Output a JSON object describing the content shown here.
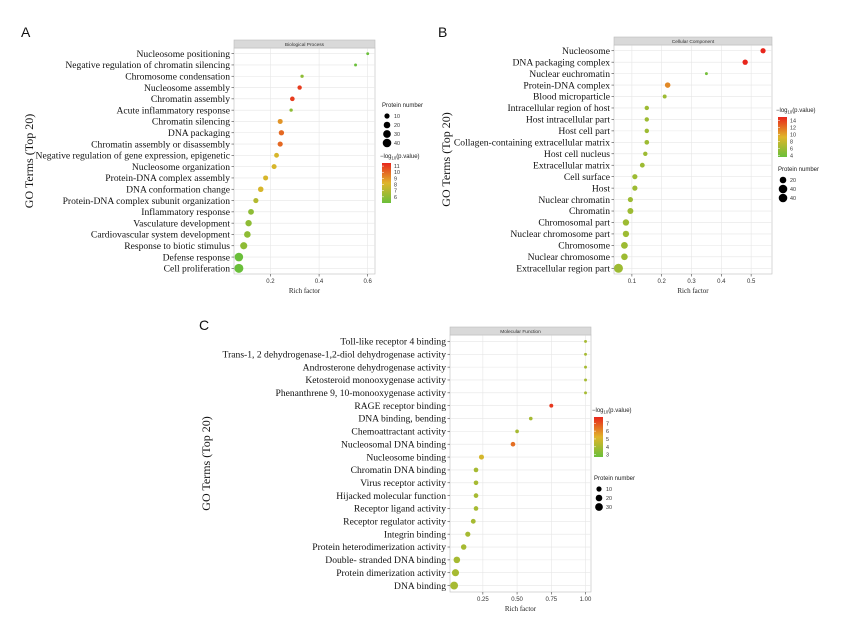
{
  "chart_data": [
    {
      "type": "scatter",
      "panel_letter": "A",
      "title": "Biological Process",
      "xlabel": "Rich factor",
      "ylabel": "GO Terms (Top 20)",
      "x_ticks": [
        "0.2",
        "0.4",
        "0.6"
      ],
      "xlim": [
        0.05,
        0.63
      ],
      "grid": true,
      "terms": [
        "Nucleosome positioning",
        "Negative regulation of chromatin silencing",
        "Chromosome condensation",
        "Nucleosome assembly",
        "Chromatin assembly",
        "Acute inflammatory response",
        "Chromatin silencing",
        "DNA packaging",
        "Chromatin assembly or disassembly",
        "Negative regulation of gene expression, epigenetic",
        "Nucleosome organization",
        "Protein-DNA complex assembly",
        "DNA conformation change",
        "Protein-DNA complex subunit organization",
        "Inflammatory response",
        "Vasculature development",
        "Cardiovascular system development",
        "Response to biotic stimulus",
        "Defense response",
        "Cell proliferation"
      ],
      "rich_factor": [
        0.6,
        0.55,
        0.33,
        0.32,
        0.29,
        0.285,
        0.24,
        0.245,
        0.24,
        0.225,
        0.215,
        0.18,
        0.16,
        0.14,
        0.12,
        0.11,
        0.105,
        0.09,
        0.07,
        0.07
      ],
      "protein_number": [
        1,
        1,
        2,
        6,
        7,
        2,
        9,
        11,
        10,
        8,
        9,
        9,
        12,
        10,
        14,
        18,
        20,
        25,
        40,
        45
      ],
      "neg_log10_p": [
        5,
        5,
        6,
        11,
        11,
        6,
        9,
        10,
        10,
        8,
        8,
        8,
        8,
        7,
        6,
        6,
        6,
        6,
        5,
        5
      ],
      "size_legend": {
        "title": "Protein number",
        "values": [
          "10",
          "20",
          "30",
          "40"
        ]
      },
      "color_legend": {
        "title_main": "−log",
        "title_sub": "10",
        "title_end": "(p.value)",
        "ticks": [
          "11",
          "10",
          "9",
          "8",
          "7",
          "6"
        ],
        "range": [
          5,
          11.5
        ]
      }
    },
    {
      "type": "scatter",
      "panel_letter": "B",
      "title": "Cellular Component",
      "xlabel": "Rich factor",
      "ylabel": "GO Terms (Top 20)",
      "x_ticks": [
        "0.1",
        "0.2",
        "0.3",
        "0.4",
        "0.5"
      ],
      "xlim": [
        0.04,
        0.57
      ],
      "grid": true,
      "terms": [
        "Nucleosome",
        "DNA packaging complex",
        "Nuclear euchromatin",
        "Protein-DNA complex",
        "Blood microparticle",
        "Intracellular region of host",
        "Host intracellular part",
        "Host cell part",
        "Collagen-containing extracellular matrix",
        "Host cell nucleus",
        "Extracellular matrix",
        "Cell surface",
        "Host",
        "Nuclear chromatin",
        "Chromatin",
        "Chromosomal part",
        "Nuclear chromosome part",
        "Chromosome",
        "Nuclear chromosome",
        "Extracellular region part"
      ],
      "rich_factor": [
        0.54,
        0.48,
        0.35,
        0.22,
        0.21,
        0.15,
        0.15,
        0.15,
        0.15,
        0.145,
        0.135,
        0.11,
        0.11,
        0.095,
        0.095,
        0.08,
        0.08,
        0.075,
        0.075,
        0.055
      ],
      "protein_number": [
        10,
        11,
        1,
        12,
        4,
        6,
        6,
        6,
        7,
        6,
        8,
        10,
        10,
        10,
        15,
        18,
        18,
        22,
        20,
        45
      ],
      "neg_log10_p": [
        15,
        15,
        4,
        11,
        6,
        6,
        6,
        6,
        6,
        6,
        6,
        6,
        6,
        6,
        6,
        6,
        6,
        6,
        6,
        6
      ],
      "size_legend": {
        "title": "Protein number",
        "values": [
          "20",
          "40",
          "40"
        ]
      },
      "color_legend": {
        "title_main": "−log",
        "title_sub": "10",
        "title_end": "(p.value)",
        "ticks": [
          "14",
          "12",
          "10",
          "8",
          "6",
          "4"
        ],
        "range": [
          3.5,
          15
        ]
      }
    },
    {
      "type": "scatter",
      "panel_letter": "C",
      "title": "Molecular Function",
      "xlabel": "Rich factor",
      "ylabel": "GO Terms (Top 20)",
      "x_ticks": [
        "0.25",
        "0.50",
        "0.75",
        "1.00"
      ],
      "xlim": [
        0.01,
        1.04
      ],
      "grid": true,
      "terms": [
        "Toll-like receptor 4 binding",
        "Trans-1, 2 dehydrogenase-1,2-diol dehydrogenase activity",
        "Androsterone dehydrogenase activity",
        "Ketosteroid monooxygenase activity",
        "Phenanthrene 9, 10-monooxygenase activity",
        "RAGE receptor binding",
        "DNA binding, bending",
        "Chemoattractant activity",
        "Nucleosomal DNA binding",
        "Nucleosome binding",
        "Chromatin DNA binding",
        "Virus receptor activity",
        "Hijacked molecular function",
        "Receptor ligand activity",
        "Receptor regulator activity",
        "Integrin binding",
        "Protein heterodimerization activity",
        "Double- stranded DNA binding",
        "Protein dimerization activity",
        "DNA binding"
      ],
      "rich_factor": [
        1.0,
        1.0,
        1.0,
        1.0,
        1.0,
        0.75,
        0.6,
        0.5,
        0.47,
        0.24,
        0.2,
        0.2,
        0.2,
        0.2,
        0.18,
        0.14,
        0.11,
        0.06,
        0.05,
        0.04
      ],
      "protein_number": [
        1,
        1,
        1,
        1,
        1,
        4,
        3,
        3,
        7,
        9,
        7,
        7,
        7,
        7,
        8,
        10,
        12,
        20,
        25,
        32
      ],
      "neg_log10_p": [
        4,
        4,
        4,
        4,
        4,
        7.5,
        4,
        4,
        6.5,
        5,
        4,
        4,
        4,
        4,
        4,
        4,
        4,
        4,
        4,
        4
      ],
      "size_legend": {
        "title": "Protein number",
        "values": [
          "10",
          "20",
          "30"
        ]
      },
      "color_legend": {
        "title_main": "−log",
        "title_sub": "10",
        "title_end": "(p.value)",
        "ticks": [
          "7",
          "6",
          "5",
          "4",
          "3"
        ],
        "range": [
          2.7,
          7.8
        ]
      }
    }
  ],
  "colors": {
    "low": "#6abf3a",
    "mid": "#e0b52a",
    "high": "#e8261c",
    "grid": "#e6e6e6",
    "strip": "#d9d9d9",
    "frame": "#bdbdbd"
  }
}
